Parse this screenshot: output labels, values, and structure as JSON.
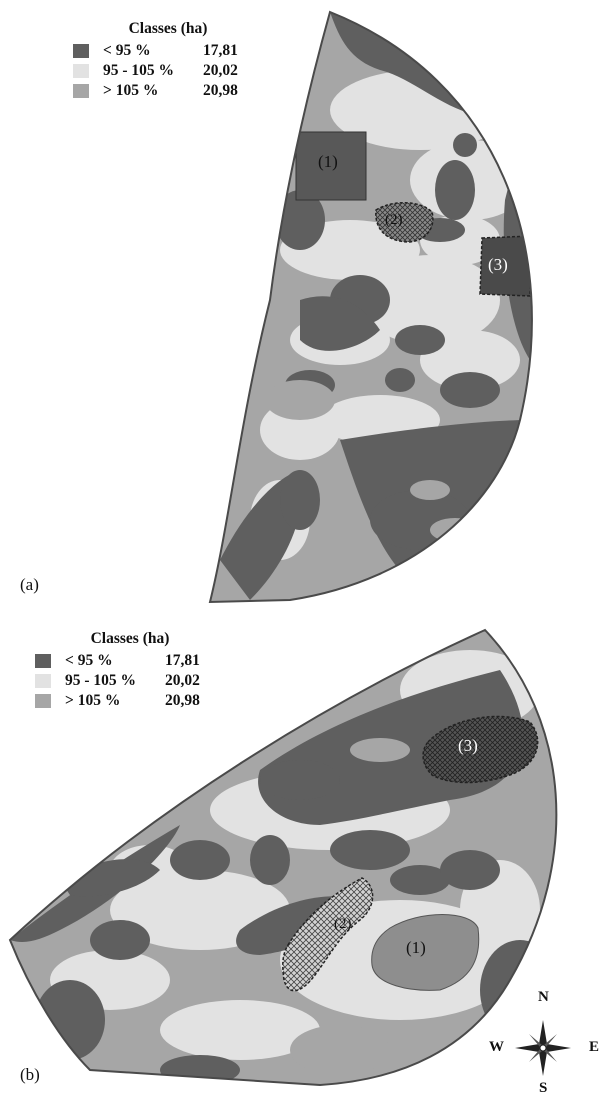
{
  "colors": {
    "dark": "#5f5f5f",
    "light": "#e2e2e2",
    "medium": "#a6a6a6",
    "outline": "#4a4a4a",
    "zone": "#585858"
  },
  "legend": {
    "title": "Classes (ha)",
    "items": [
      {
        "label": "< 95 %",
        "value": "17,81",
        "class": "dark"
      },
      {
        "label": "95 - 105 %",
        "value": "20,02",
        "class": "light"
      },
      {
        "label": "> 105 %",
        "value": "20,98",
        "class": "medium"
      }
    ]
  },
  "panel_a": {
    "caption": "(a)",
    "zones": [
      "(1)",
      "(2)",
      "(3)"
    ]
  },
  "panel_b": {
    "caption": "(b)",
    "zones": [
      "(3)",
      "(2)",
      "(1)"
    ]
  },
  "compass": {
    "n": "N",
    "s": "S",
    "e": "E",
    "w": "W",
    "icon": "compass-rose-icon"
  }
}
